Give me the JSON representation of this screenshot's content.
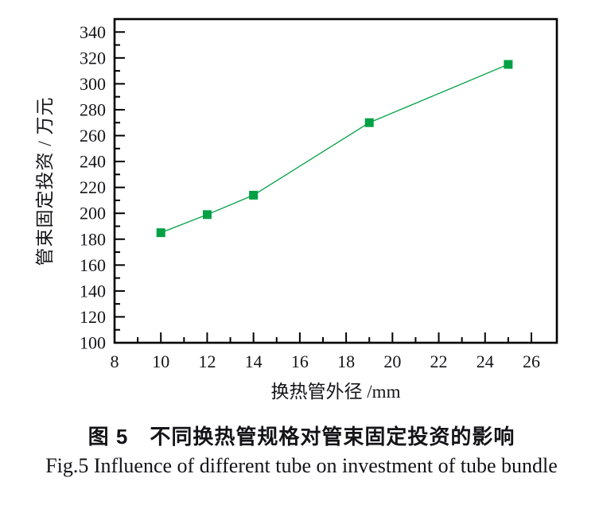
{
  "figure": {
    "caption_zh": "图 5　不同换热管规格对管束固定投资的影响",
    "caption_en": "Fig.5  Influence of different tube on investment of tube bundle"
  },
  "chart_data": {
    "type": "line",
    "title": "",
    "xlabel": "换热管外径 /mm",
    "ylabel": "管束固定投资 / 万元",
    "x": [
      10,
      12,
      14,
      19,
      25
    ],
    "y": [
      185,
      199,
      214,
      270,
      315
    ],
    "series_name": "管束固定投资",
    "xlim": [
      8,
      27.1
    ],
    "ylim": [
      100,
      350
    ],
    "x_major_ticks": [
      8,
      10,
      12,
      14,
      16,
      18,
      20,
      22,
      24,
      26
    ],
    "x_minor_ticks": [
      9,
      11,
      13,
      15,
      17,
      19,
      21,
      23,
      25
    ],
    "y_major_ticks": [
      100,
      120,
      140,
      160,
      180,
      200,
      220,
      240,
      260,
      280,
      300,
      320,
      340
    ],
    "y_minor_ticks": [
      110,
      130,
      150,
      170,
      190,
      210,
      230,
      250,
      270,
      290,
      310,
      330
    ],
    "grid": false,
    "legend": null,
    "marker": "square",
    "marker_size": 11,
    "line_color": "#00a044",
    "marker_color": "#00a044",
    "axis_color": "#000000",
    "tick_direction": "in"
  }
}
